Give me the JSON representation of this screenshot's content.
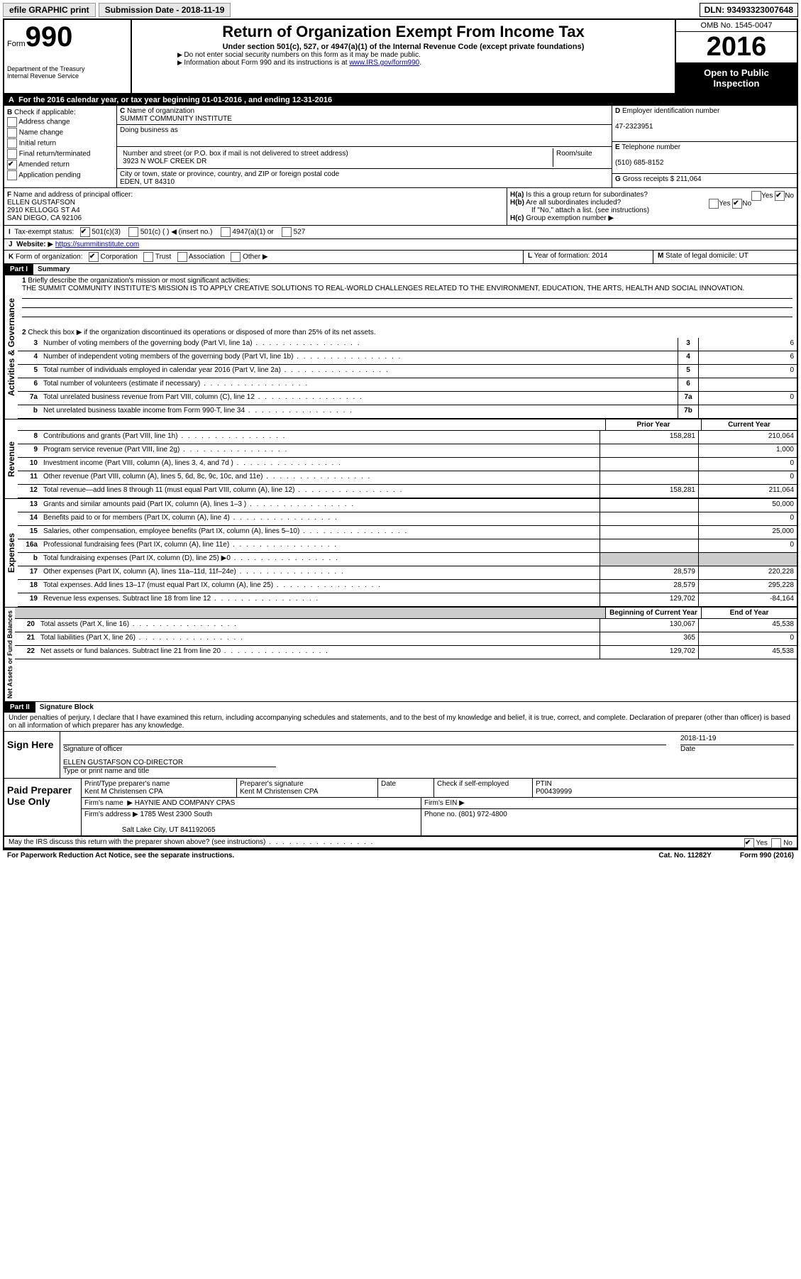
{
  "top": {
    "efile": "efile GRAPHIC print",
    "subdate": "Submission Date - 2018-11-19",
    "dln": "DLN: 93493323007648"
  },
  "header": {
    "form_prefix": "Form",
    "form_num": "990",
    "dept1": "Department of the Treasury",
    "dept2": "Internal Revenue Service",
    "title": "Return of Organization Exempt From Income Tax",
    "sub": "Under section 501(c), 527, or 4947(a)(1) of the Internal Revenue Code (except private foundations)",
    "hint1": "Do not enter social security numbers on this form as it may be made public.",
    "hint2": "Information about Form 990 and its instructions is at ",
    "hint2link": "www.IRS.gov/form990",
    "omb": "OMB No. 1545-0047",
    "year": "2016",
    "otp1": "Open to Public",
    "otp2": "Inspection"
  },
  "rowA": {
    "text": "For the 2016 calendar year, or tax year beginning 01-01-2016   , and ending 12-31-2016",
    "letter": "A"
  },
  "B": {
    "label": "Check if applicable:",
    "opts": [
      "Address change",
      "Name change",
      "Initial return",
      "Final return/terminated",
      "Amended return",
      "Application pending"
    ],
    "checked_idx": 4
  },
  "C": {
    "name_lbl": "Name of organization",
    "name": "SUMMIT COMMUNITY INSTITUTE",
    "dba_lbl": "Doing business as",
    "dba": "",
    "street_lbl": "Number and street (or P.O. box if mail is not delivered to street address)",
    "room_lbl": "Room/suite",
    "street": "3923 N WOLF CREEK DR",
    "city_lbl": "City or town, state or province, country, and ZIP or foreign postal code",
    "city": "EDEN, UT  84310",
    "letter": "C"
  },
  "D": {
    "lbl": "Employer identification number",
    "val": "47-2323951",
    "letter": "D"
  },
  "E": {
    "lbl": "Telephone number",
    "val": "(510) 685-8152",
    "letter": "E"
  },
  "G": {
    "lbl": "Gross receipts $",
    "val": "211,064",
    "letter": "G"
  },
  "F": {
    "lbl": "Name and address of principal officer:",
    "l1": "ELLEN GUSTAFSON",
    "l2": "2910 KELLOGG ST A4",
    "l3": "SAN DIEGO, CA  92106",
    "letter": "F"
  },
  "H": {
    "a_lbl": "Is this a group return for subordinates?",
    "a_letter": "H(a)",
    "a_no": true,
    "b_lbl": "Are all subordinates included?",
    "b_letter": "H(b)",
    "b_no": true,
    "b_note": "If \"No,\" attach a list. (see instructions)",
    "c_lbl": "Group exemption number",
    "c_letter": "H(c)",
    "yes": "Yes",
    "no": "No"
  },
  "I": {
    "lbl": "Tax-exempt status:",
    "letter": "I",
    "opts": [
      "501(c)(3)",
      "501(c) (   ) ◀ (insert no.)",
      "4947(a)(1) or",
      "527"
    ],
    "checked_idx": 0
  },
  "J": {
    "lbl": "Website:",
    "letter": "J",
    "val": "https://summitinstitute.com"
  },
  "K": {
    "lbl": "Form of organization:",
    "letter": "K",
    "opts": [
      "Corporation",
      "Trust",
      "Association",
      "Other"
    ],
    "checked_idx": 0
  },
  "L": {
    "lbl": "Year of formation:",
    "val": "2014",
    "letter": "L"
  },
  "M": {
    "lbl": "State of legal domicile:",
    "val": "UT",
    "letter": "M"
  },
  "part1": {
    "label": "Part I",
    "title": "Summary"
  },
  "p1": {
    "q1": "Briefly describe the organization's mission or most significant activities:",
    "mission": "THE SUMMIT COMMUNITY INSTITUTE'S MISSION IS TO APPLY CREATIVE SOLUTIONS TO REAL-WORLD CHALLENGES RELATED TO THE ENVIRONMENT, EDUCATION, THE ARTS, HEALTH AND SOCIAL INNOVATION.",
    "q2": "Check this box ▶       if the organization discontinued its operations or disposed of more than 25% of its net assets.",
    "lines": [
      {
        "n": "3",
        "d": "Number of voting members of the governing body (Part VI, line 1a)",
        "box": "3",
        "v": "6"
      },
      {
        "n": "4",
        "d": "Number of independent voting members of the governing body (Part VI, line 1b)",
        "box": "4",
        "v": "6"
      },
      {
        "n": "5",
        "d": "Total number of individuals employed in calendar year 2016 (Part V, line 2a)",
        "box": "5",
        "v": "0"
      },
      {
        "n": "6",
        "d": "Total number of volunteers (estimate if necessary)",
        "box": "6",
        "v": ""
      },
      {
        "n": "7a",
        "d": "Total unrelated business revenue from Part VIII, column (C), line 12",
        "box": "7a",
        "v": "0"
      },
      {
        "n": "b",
        "d": "Net unrelated business taxable income from Form 990-T, line 34",
        "box": "7b",
        "v": ""
      }
    ],
    "vert": "Activities & Governance"
  },
  "rev": {
    "vert": "Revenue",
    "hprior": "Prior Year",
    "hcur": "Current Year",
    "lines": [
      {
        "n": "8",
        "d": "Contributions and grants (Part VIII, line 1h)",
        "p": "158,281",
        "c": "210,064"
      },
      {
        "n": "9",
        "d": "Program service revenue (Part VIII, line 2g)",
        "p": "",
        "c": "1,000"
      },
      {
        "n": "10",
        "d": "Investment income (Part VIII, column (A), lines 3, 4, and 7d )",
        "p": "",
        "c": "0"
      },
      {
        "n": "11",
        "d": "Other revenue (Part VIII, column (A), lines 5, 6d, 8c, 9c, 10c, and 11e)",
        "p": "",
        "c": "0"
      },
      {
        "n": "12",
        "d": "Total revenue—add lines 8 through 11 (must equal Part VIII, column (A), line 12)",
        "p": "158,281",
        "c": "211,064"
      }
    ]
  },
  "exp": {
    "vert": "Expenses",
    "lines": [
      {
        "n": "13",
        "d": "Grants and similar amounts paid (Part IX, column (A), lines 1–3 )",
        "p": "",
        "c": "50,000"
      },
      {
        "n": "14",
        "d": "Benefits paid to or for members (Part IX, column (A), line 4)",
        "p": "",
        "c": "0"
      },
      {
        "n": "15",
        "d": "Salaries, other compensation, employee benefits (Part IX, column (A), lines 5–10)",
        "p": "",
        "c": "25,000"
      },
      {
        "n": "16a",
        "d": "Professional fundraising fees (Part IX, column (A), line 11e)",
        "p": "",
        "c": "0"
      },
      {
        "n": "b",
        "d": "Total fundraising expenses (Part IX, column (D), line 25) ▶0",
        "shade": true
      },
      {
        "n": "17",
        "d": "Other expenses (Part IX, column (A), lines 11a–11d, 11f–24e)",
        "p": "28,579",
        "c": "220,228"
      },
      {
        "n": "18",
        "d": "Total expenses. Add lines 13–17 (must equal Part IX, column (A), line 25)",
        "p": "28,579",
        "c": "295,228"
      },
      {
        "n": "19",
        "d": "Revenue less expenses. Subtract line 18 from line 12",
        "p": "129,702",
        "c": "-84,164"
      }
    ]
  },
  "net": {
    "vert": "Net Assets or Fund Balances",
    "hprior": "Beginning of Current Year",
    "hcur": "End of Year",
    "lines": [
      {
        "n": "20",
        "d": "Total assets (Part X, line 16)",
        "p": "130,067",
        "c": "45,538"
      },
      {
        "n": "21",
        "d": "Total liabilities (Part X, line 26)",
        "p": "365",
        "c": "0"
      },
      {
        "n": "22",
        "d": "Net assets or fund balances. Subtract line 21 from line 20",
        "p": "129,702",
        "c": "45,538"
      }
    ]
  },
  "part2": {
    "label": "Part II",
    "title": "Signature Block"
  },
  "sig": {
    "decl": "Under penalties of perjury, I declare that I have examined this return, including accompanying schedules and statements, and to the best of my knowledge and belief, it is true, correct, and complete. Declaration of preparer (other than officer) is based on all information of which preparer has any knowledge.",
    "sign_lbl": "Sign Here",
    "sig_officer": "Signature of officer",
    "date_lbl": "Date",
    "date": "2018-11-19",
    "name": "ELLEN GUSTAFSON CO-DIRECTOR",
    "name_lbl": "Type or print name and title"
  },
  "prep": {
    "lbl": "Paid Preparer Use Only",
    "h1": "Print/Type preparer's name",
    "v1": "Kent M Christensen CPA",
    "h2": "Preparer's signature",
    "v2": "Kent M Christensen CPA",
    "h3": "Date",
    "h4": "Check        if self-employed",
    "h5": "PTIN",
    "v5": "P00439999",
    "firm_lbl": "Firm's name",
    "firm": "HAYNIE AND COMPANY CPAS",
    "ein_lbl": "Firm's EIN ▶",
    "addr_lbl": "Firm's address ▶",
    "addr1": "1785 West 2300 South",
    "addr2": "Salt Lake City, UT  841192065",
    "phone_lbl": "Phone no.",
    "phone": "(801) 972-4800"
  },
  "discuss": {
    "text": "May the IRS discuss this return with the preparer shown above? (see instructions)",
    "yes": "Yes",
    "no": "No"
  },
  "footer": {
    "l": "For Paperwork Reduction Act Notice, see the separate instructions.",
    "m": "Cat. No. 11282Y",
    "r": "Form 990 (2016)"
  }
}
